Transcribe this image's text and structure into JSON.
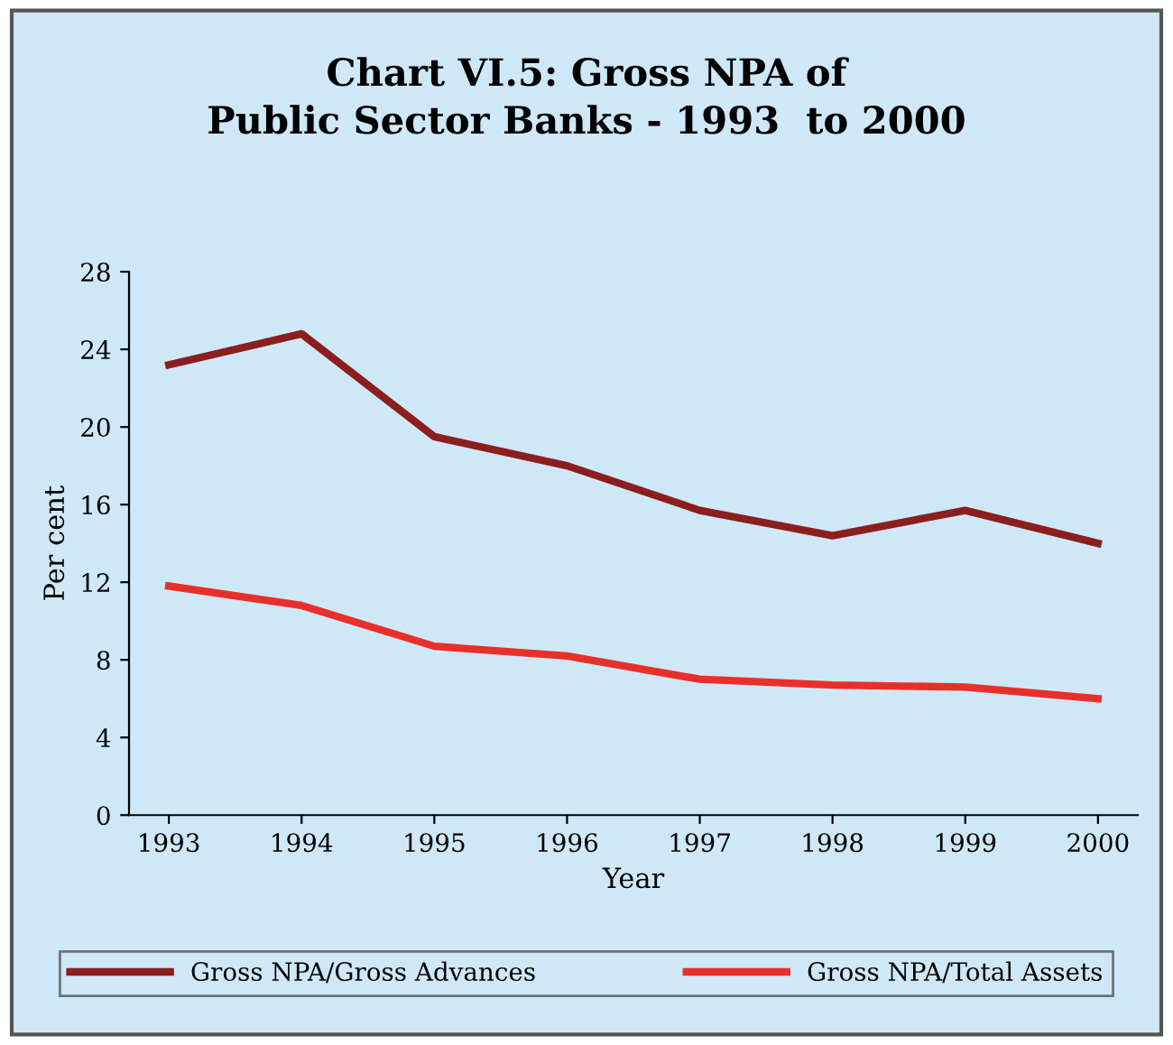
{
  "chart_data": {
    "type": "line",
    "title": "Chart VI.5: Gross NPA of\nPublic Sector Banks - 1993  to 2000",
    "xlabel": "Year",
    "ylabel": "Per cent",
    "categories": [
      "1993",
      "1994",
      "1995",
      "1996",
      "1997",
      "1998",
      "1999",
      "2000"
    ],
    "series": [
      {
        "name": "Gross NPA/Gross Advances",
        "color": "#8b1e1e",
        "values": [
          23.2,
          24.8,
          19.5,
          18.0,
          15.7,
          14.4,
          15.7,
          14.0
        ]
      },
      {
        "name": "Gross NPA/Total Assets",
        "color": "#e8302a",
        "values": [
          11.8,
          10.8,
          8.7,
          8.2,
          7.0,
          6.7,
          6.6,
          6.0
        ]
      }
    ],
    "ylim": [
      0,
      28
    ],
    "yticks": [
      0,
      4,
      8,
      12,
      16,
      20,
      24,
      28
    ],
    "grid": false,
    "legend": "bottom",
    "marker": "none",
    "line_style": "solid"
  }
}
